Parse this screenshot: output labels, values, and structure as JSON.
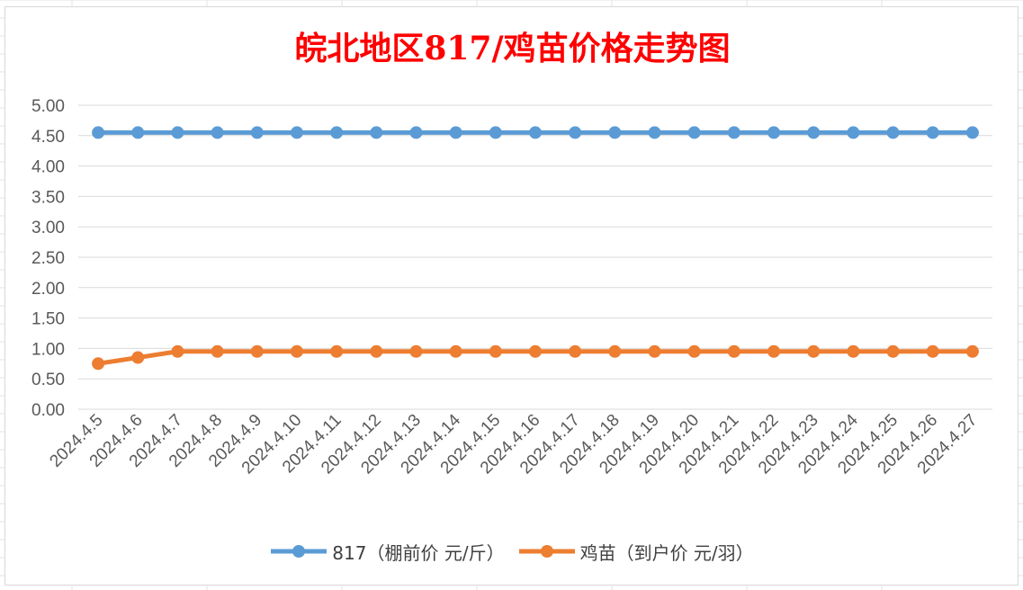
{
  "chart_data": {
    "type": "line",
    "title": "皖北地区817/鸡苗价格走势图",
    "xlabel": "",
    "ylabel": "",
    "ylim": [
      0,
      5
    ],
    "ytick_step": 0.5,
    "yticks": [
      "0.00",
      "0.50",
      "1.00",
      "1.50",
      "2.00",
      "2.50",
      "3.00",
      "3.50",
      "4.00",
      "4.50",
      "5.00"
    ],
    "grid": true,
    "legend_position": "bottom",
    "categories": [
      "2024.4.5",
      "2024.4.6",
      "2024.4.7",
      "2024.4.8",
      "2024.4.9",
      "2024.4.10",
      "2024.4.11",
      "2024.4.12",
      "2024.4.13",
      "2024.4.14",
      "2024.4.15",
      "2024.4.16",
      "2024.4.17",
      "2024.4.18",
      "2024.4.19",
      "2024.4.20",
      "2024.4.21",
      "2024.4.22",
      "2024.4.23",
      "2024.4.24",
      "2024.4.25",
      "2024.4.26",
      "2024.4.27"
    ],
    "series": [
      {
        "name": "817（棚前价 元/斤）",
        "color": "#5b9bd5",
        "values": [
          4.55,
          4.55,
          4.55,
          4.55,
          4.55,
          4.55,
          4.55,
          4.55,
          4.55,
          4.55,
          4.55,
          4.55,
          4.55,
          4.55,
          4.55,
          4.55,
          4.55,
          4.55,
          4.55,
          4.55,
          4.55,
          4.55,
          4.55
        ]
      },
      {
        "name": "鸡苗（到户价 元/羽）",
        "color": "#ed7d31",
        "values": [
          0.75,
          0.85,
          0.95,
          0.95,
          0.95,
          0.95,
          0.95,
          0.95,
          0.95,
          0.95,
          0.95,
          0.95,
          0.95,
          0.95,
          0.95,
          0.95,
          0.95,
          0.95,
          0.95,
          0.95,
          0.95,
          0.95,
          0.95
        ]
      }
    ]
  }
}
